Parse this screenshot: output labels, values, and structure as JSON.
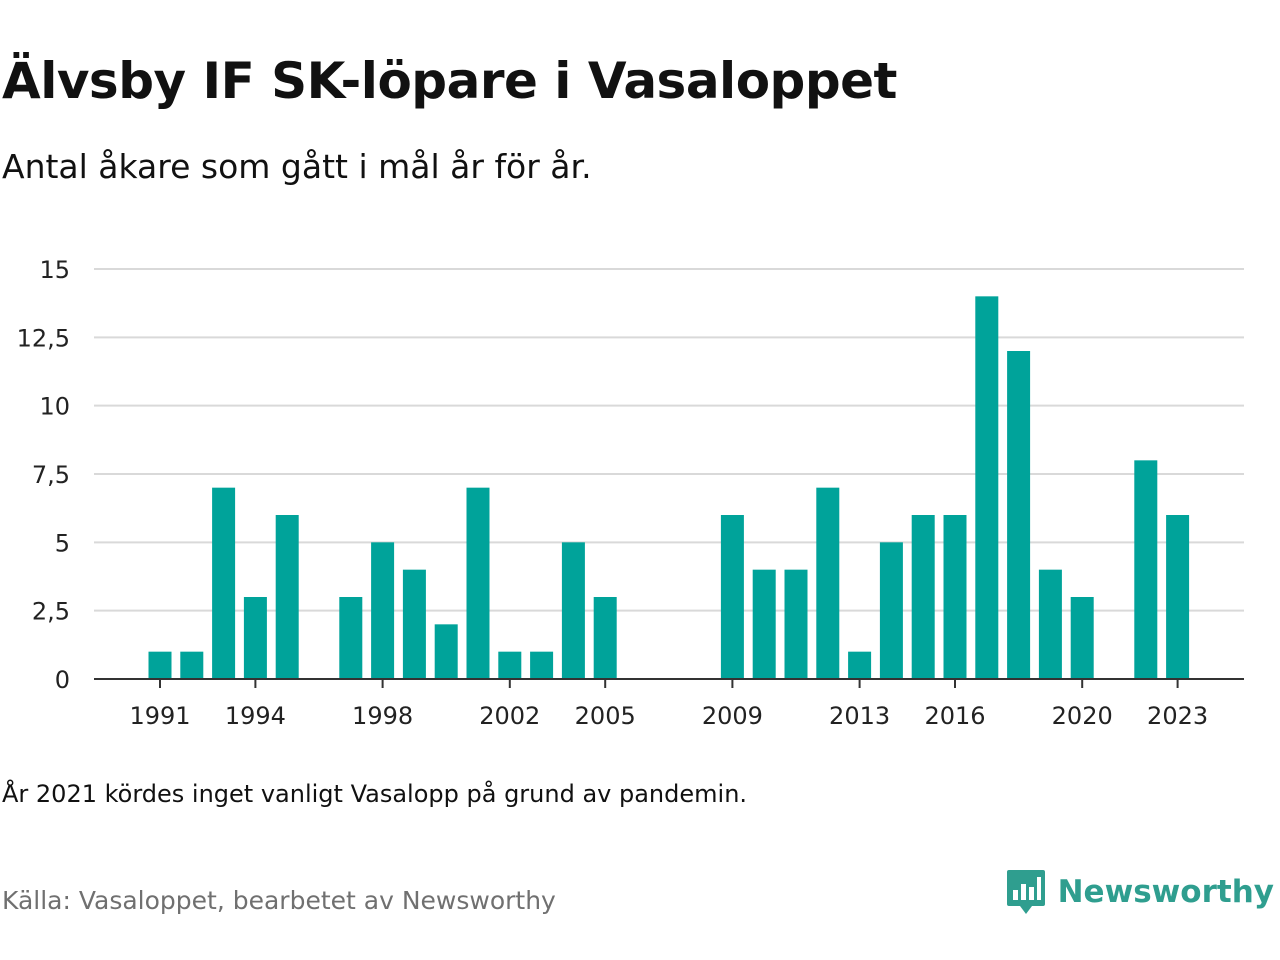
{
  "header": {
    "title": "Älvsby IF SK-löpare i Vasaloppet",
    "subtitle": "Antal åkare som gått i mål år för år."
  },
  "footer": {
    "note": "År 2021 kördes inget vanligt Vasalopp på grund av pandemin.",
    "source": "Källa: Vasaloppet, bearbetet av Newsworthy",
    "brand": "Newsworthy",
    "brand_icon": "bar-chart-speech-bubble-icon"
  },
  "colors": {
    "bar": "#00a39a",
    "grid": "#d9d9d9",
    "axis": "#333333",
    "brand": "#2f9e8f"
  },
  "chart_data": {
    "type": "bar",
    "title": "Älvsby IF SK-löpare i Vasaloppet",
    "subtitle": "Antal åkare som gått i mål år för år.",
    "xlabel": "",
    "ylabel": "",
    "ylim": [
      0,
      15
    ],
    "y_ticks": [
      0,
      2.5,
      5,
      7.5,
      10,
      12.5,
      15
    ],
    "y_tick_labels": [
      "0",
      "2,5",
      "5",
      "7,5",
      "10",
      "12,5",
      "15"
    ],
    "x_tick_labels": [
      1991,
      1994,
      1998,
      2002,
      2005,
      2009,
      2013,
      2016,
      2020,
      2023
    ],
    "grid": true,
    "legend": "none",
    "categories": [
      1991,
      1992,
      1993,
      1994,
      1995,
      1996,
      1997,
      1998,
      1999,
      2000,
      2001,
      2002,
      2003,
      2004,
      2005,
      2006,
      2007,
      2008,
      2009,
      2010,
      2011,
      2012,
      2013,
      2014,
      2015,
      2016,
      2017,
      2018,
      2019,
      2020,
      2021,
      2022,
      2023
    ],
    "values": [
      1,
      1,
      7,
      3,
      6,
      0,
      3,
      5,
      4,
      2,
      7,
      1,
      1,
      5,
      3,
      0,
      0,
      0,
      6,
      4,
      4,
      7,
      1,
      5,
      6,
      6,
      14,
      12,
      4,
      3,
      0,
      8,
      6
    ]
  }
}
